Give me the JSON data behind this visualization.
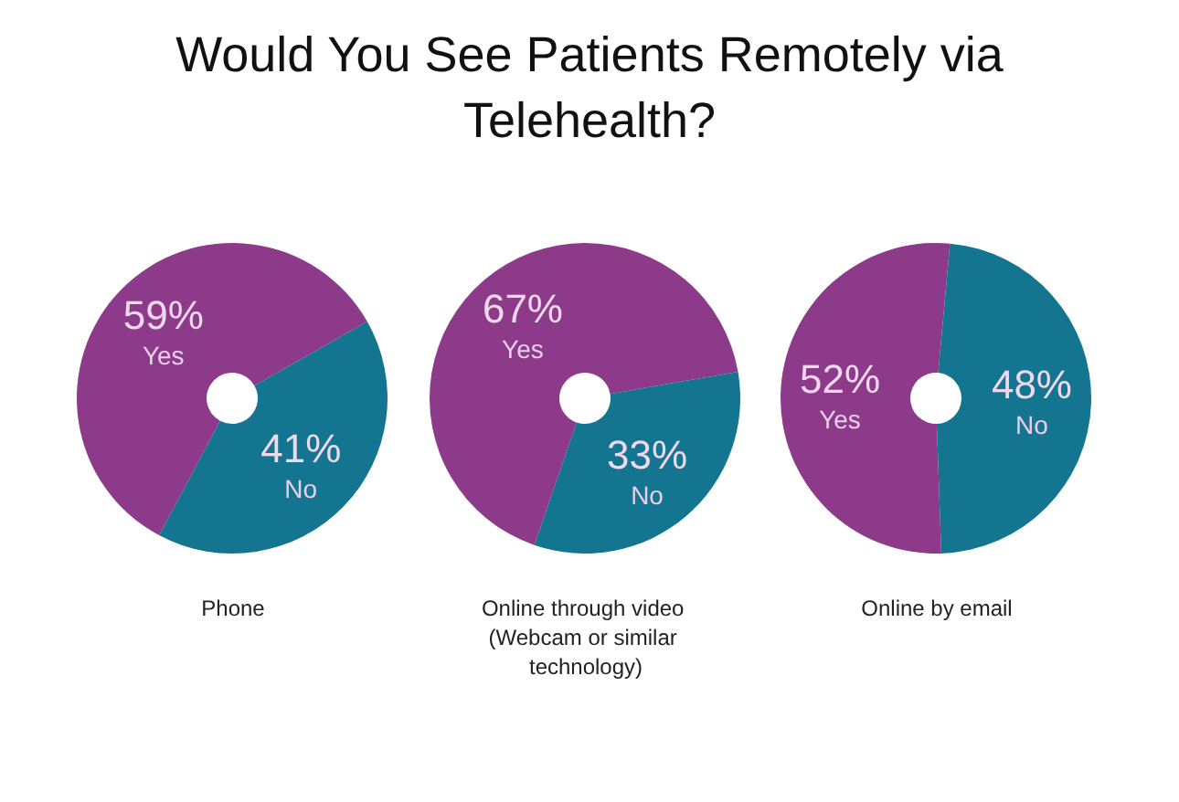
{
  "chart_data": [
    {
      "type": "donut",
      "title": "Would You See Patients Remotely via Telehealth?",
      "xlabel": "Phone",
      "categories": [
        "Yes",
        "No"
      ],
      "values": [
        59,
        41
      ],
      "value_labels": [
        "59%",
        "41%"
      ],
      "colors": [
        "#8e3a8a",
        "#13758f"
      ]
    },
    {
      "type": "donut",
      "xlabel": "Online through video (Webcam or similar technology)",
      "categories": [
        "Yes",
        "No"
      ],
      "values": [
        67,
        33
      ],
      "value_labels": [
        "67%",
        "33%"
      ],
      "colors": [
        "#8e3a8a",
        "#13758f"
      ]
    },
    {
      "type": "donut",
      "xlabel": "Online by email",
      "categories": [
        "Yes",
        "No"
      ],
      "values": [
        52,
        48
      ],
      "value_labels": [
        "52%",
        "48%"
      ],
      "colors": [
        "#8e3a8a",
        "#13758f"
      ]
    }
  ]
}
